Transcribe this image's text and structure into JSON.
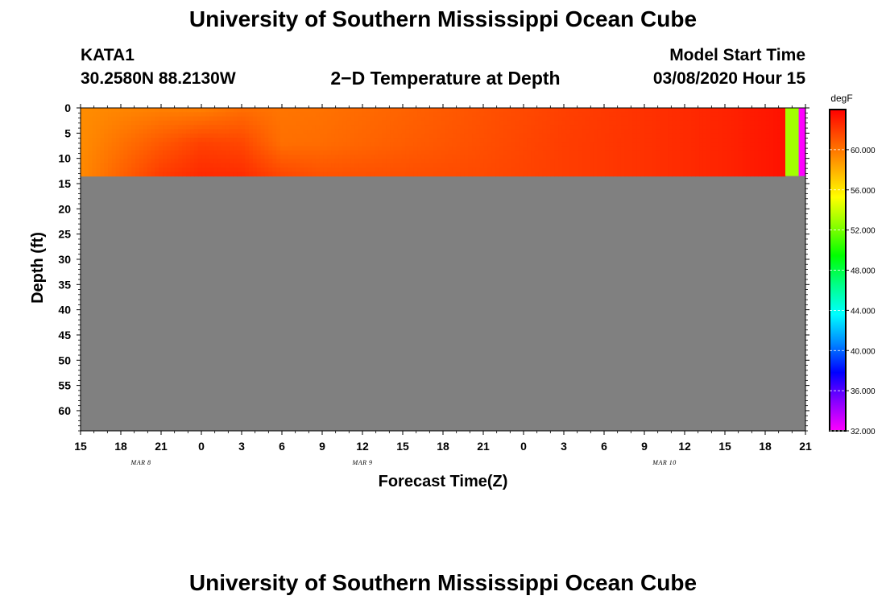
{
  "header": {
    "title_top": "University of Southern Mississippi Ocean Cube",
    "title_bottom": "University of Southern Mississippi Ocean Cube",
    "station": "KATA1",
    "coordinates": "30.2580N 88.2130W",
    "model_start_label": "Model Start Time",
    "model_start_value": "03/08/2020 Hour 15",
    "plot_title": "2−D Temperature at Depth"
  },
  "chart_data": {
    "type": "heatmap",
    "title": "2−D Temperature at Depth",
    "xlabel": "Forecast Time(Z)",
    "ylabel": "Depth (ft)",
    "x_ticks": [
      "15",
      "18",
      "21",
      "0",
      "3",
      "6",
      "9",
      "12",
      "15",
      "18",
      "21",
      "0",
      "3",
      "6",
      "9",
      "12",
      "15",
      "18",
      "21"
    ],
    "x_hours": [
      0,
      3,
      6,
      9,
      12,
      15,
      18,
      21,
      24,
      27,
      30,
      33,
      36,
      39,
      42,
      45,
      48,
      51,
      54
    ],
    "date_labels": [
      {
        "text": "MAR 8",
        "hour": 4.5
      },
      {
        "text": "MAR 9",
        "hour": 21
      },
      {
        "text": "MAR 10",
        "hour": 43.5
      }
    ],
    "y_ticks": [
      0,
      5,
      10,
      15,
      20,
      25,
      30,
      35,
      40,
      45,
      50,
      55,
      60
    ],
    "ylim": [
      0,
      64
    ],
    "xlim": [
      0,
      54
    ],
    "data_depth_max": 13.5,
    "temperature_field": {
      "hours": [
        0,
        6,
        9,
        12,
        15,
        18,
        24,
        30,
        36,
        42,
        48,
        52.5
      ],
      "depths": [
        0,
        7,
        13.5
      ],
      "values_degF": [
        [
          59.2,
          59.6,
          59.6,
          60.2,
          60.0,
          60.1,
          60.6,
          61.2,
          61.8,
          62.3,
          62.8,
          63.4
        ],
        [
          59.2,
          61.0,
          61.8,
          61.6,
          60.2,
          60.3,
          60.8,
          61.3,
          61.9,
          62.3,
          62.8,
          63.4
        ],
        [
          59.3,
          62.0,
          62.6,
          62.5,
          61.6,
          61.2,
          61.3,
          61.5,
          61.9,
          62.3,
          62.8,
          63.4
        ]
      ],
      "edge_columns": [
        {
          "hours": [
            52.5,
            53.5
          ],
          "value_degF": 53.0
        },
        {
          "hours": [
            53.5,
            54.0
          ],
          "value_degF": 32.0
        }
      ],
      "no_data_color": "#808080"
    },
    "colorbar": {
      "unit": "degF",
      "min": 32.0,
      "max": 64.0,
      "tick_labels": [
        "32.000",
        "36.000",
        "40.000",
        "44.000",
        "48.000",
        "52.000",
        "56.000",
        "60.000"
      ],
      "tick_values": [
        32,
        36,
        40,
        44,
        48,
        52,
        56,
        60
      ],
      "colors": [
        "#ff00ff",
        "#8800ff",
        "#0000ff",
        "#0088ff",
        "#00ffff",
        "#00ff88",
        "#00ff00",
        "#88ff00",
        "#ffff00",
        "#ffaa00",
        "#ff5500",
        "#ff0000"
      ]
    },
    "grid": false
  }
}
